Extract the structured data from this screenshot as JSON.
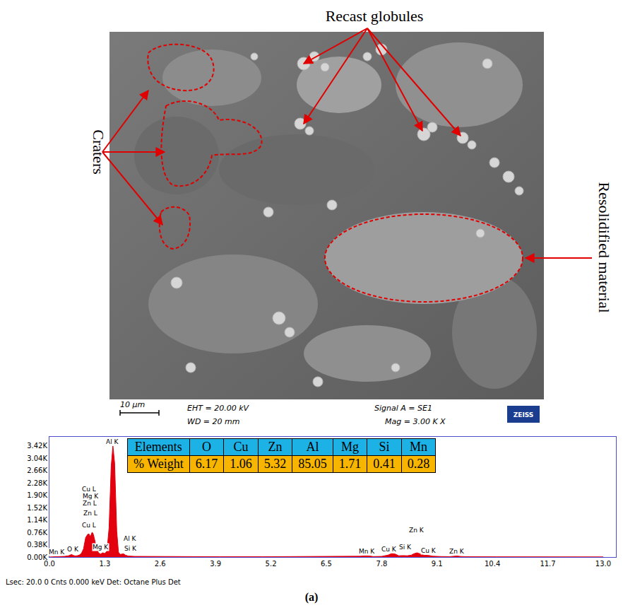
{
  "sem_image": {
    "annotations": [
      "Recast globules",
      "Craters",
      "Resolidified material"
    ],
    "scale_bar": "10 μm",
    "info": [
      "EHT = 20.00 kV",
      "WD = 20  mm",
      "Signal A = SE1",
      "Mag =  3.00 K X"
    ],
    "logo": "ZEISS"
  },
  "chart_data": {
    "type": "area",
    "color": "#e3000f",
    "grid": false,
    "x": [
      0.0,
      0.1,
      0.2,
      0.25,
      0.3,
      0.35,
      0.4,
      0.45,
      0.5,
      0.52,
      0.55,
      0.6,
      0.65,
      0.7,
      0.75,
      0.8,
      0.85,
      0.9,
      0.93,
      0.96,
      1.0,
      1.02,
      1.05,
      1.1,
      1.15,
      1.2,
      1.25,
      1.3,
      1.35,
      1.4,
      1.45,
      1.49,
      1.53,
      1.58,
      1.62,
      1.66,
      1.7,
      1.74,
      1.78,
      1.85,
      2.0,
      2.5,
      3.0,
      4.0,
      5.0,
      6.0,
      7.0,
      7.3,
      7.4,
      7.45,
      7.5,
      7.6,
      7.8,
      7.95,
      8.04,
      8.12,
      8.2,
      8.3,
      8.4,
      8.5,
      8.55,
      8.63,
      8.7,
      8.8,
      8.9,
      9.0,
      9.2,
      9.4,
      9.55,
      9.57,
      9.65,
      9.8,
      10.5,
      11.5,
      12.5,
      13.0
    ],
    "values": [
      0,
      5,
      10,
      20,
      25,
      30,
      30,
      40,
      70,
      80,
      55,
      35,
      40,
      60,
      110,
      250,
      600,
      700,
      710,
      620,
      760,
      740,
      600,
      300,
      130,
      90,
      130,
      110,
      180,
      900,
      2800,
      3420,
      2900,
      800,
      150,
      80,
      90,
      100,
      60,
      30,
      20,
      15,
      12,
      10,
      10,
      10,
      12,
      25,
      38,
      40,
      35,
      15,
      20,
      60,
      110,
      90,
      40,
      45,
      40,
      60,
      100,
      130,
      100,
      55,
      50,
      25,
      15,
      12,
      30,
      32,
      18,
      10,
      8,
      6,
      5,
      4
    ],
    "xlim": [
      0,
      13.3
    ],
    "xticks": [
      {
        "value": 0,
        "label": "0.0"
      },
      1.3,
      2.6,
      3.9,
      5.2,
      6.5,
      7.8,
      9.1,
      10.4,
      11.7,
      {
        "value": 13,
        "label": "13.0"
      }
    ],
    "ylim": [
      0,
      3700
    ],
    "yticks": [
      {
        "value": 0,
        "label": "0.00K"
      },
      {
        "value": 380,
        "label": "0.38K"
      },
      {
        "value": 760,
        "label": "0.76K"
      },
      {
        "value": 1140,
        "label": "1.14K"
      },
      {
        "value": 1520,
        "label": "1.52K"
      },
      {
        "value": 1900,
        "label": "1.90K"
      },
      {
        "value": 2280,
        "label": "2.28K"
      },
      {
        "value": 2660,
        "label": "2.66K"
      },
      {
        "value": 3040,
        "label": "3.04K"
      },
      {
        "value": 3420,
        "label": "3.42K"
      }
    ],
    "annotations": [
      {
        "text": "Mn K",
        "x": 0.17,
        "y": 30
      },
      {
        "text": "O K",
        "x": 0.55,
        "y": 100
      },
      {
        "text": "Cu L",
        "x": 0.93,
        "y": 1950
      },
      {
        "text": "Mg K",
        "x": 0.97,
        "y": 1740
      },
      {
        "text": "Zn L",
        "x": 0.95,
        "y": 1520
      },
      {
        "text": "Zn L",
        "x": 0.97,
        "y": 1220
      },
      {
        "text": "Cu L",
        "x": 0.93,
        "y": 850
      },
      {
        "text": "Al K",
        "x": 1.49,
        "y": 3420
      },
      {
        "text": "Al K",
        "x": 1.9,
        "y": 430
      },
      {
        "text": "Mg K",
        "x": 1.2,
        "y": 170
      },
      {
        "text": "Si K",
        "x": 1.9,
        "y": 130
      },
      {
        "text": "Mn K",
        "x": 7.45,
        "y": 50
      },
      {
        "text": "Cu K",
        "x": 7.98,
        "y": 115
      },
      {
        "text": "Si K",
        "x": 8.36,
        "y": 170
      },
      {
        "text": "Zn K",
        "x": 8.63,
        "y": 700
      },
      {
        "text": "Cu K",
        "x": 8.9,
        "y": 60
      },
      {
        "text": "Zn K",
        "x": 9.57,
        "y": 40
      }
    ]
  },
  "table": {
    "header": [
      "Elements",
      "O",
      "Cu",
      "Zn",
      "Al",
      "Mg",
      "Si",
      "Mn"
    ],
    "rows": [
      [
        "% Weight",
        "6.17",
        "1.06",
        "5.32",
        "85.05",
        "1.71",
        "0.41",
        "0.28"
      ]
    ]
  },
  "footer": "Lsec: 20.0 0 Cnts 0.000 keV Det: Octane Plus Det",
  "caption": "(a)"
}
